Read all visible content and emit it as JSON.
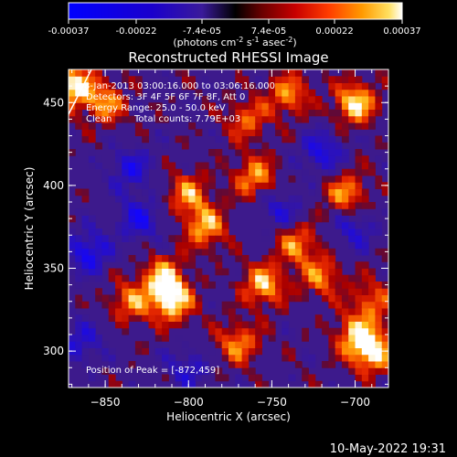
{
  "chart_data": {
    "type": "heatmap",
    "title": "Reconstructed RHESSI Image",
    "xlabel": "Heliocentric X (arcsec)",
    "ylabel": "Heliocentric Y (arcsec)",
    "xlim": [
      -872,
      -680
    ],
    "ylim": [
      278,
      470
    ],
    "xticks": [
      -850,
      -800,
      -750,
      -700
    ],
    "yticks": [
      300,
      350,
      400,
      450
    ],
    "colorbar": {
      "range": [
        -0.00037,
        0.00037
      ],
      "tick_values": [
        -0.00037,
        -0.00022,
        -7.4e-05,
        7.4e-05,
        0.00022,
        0.00037
      ],
      "tick_labels": [
        "-0.00037",
        "-0.00022",
        "-7.4e-05",
        "7.4e-05",
        "0.00022",
        "0.00037"
      ],
      "unit_prefix": "(photons cm",
      "unit_exp1": "-2",
      "unit_mid": " s",
      "unit_exp2": "-1",
      "unit_suffix": " asec",
      "unit_exp3": "-2",
      "unit_close": ")"
    },
    "annotations": {
      "time": "8-Jan-2013 03:00:16.000 to 03:06:16.000",
      "detectors": "Detectors: 3F 4F 5F 6F 7F 8F, Att 0",
      "energy": "Energy Range: 25.0 - 50.0 keV",
      "method": "Clean",
      "counts": "Total counts: 7.79E+03",
      "peak": "Position of Peak = [-872,459]"
    },
    "peak_position": [
      -872,
      459
    ],
    "approx_hotspots": [
      {
        "x": -870,
        "y": 460,
        "level": 1.0
      },
      {
        "x": -850,
        "y": 450,
        "level": 0.7
      },
      {
        "x": -700,
        "y": 450,
        "level": 0.95
      },
      {
        "x": -740,
        "y": 455,
        "level": 0.7
      },
      {
        "x": -765,
        "y": 440,
        "level": 0.6
      },
      {
        "x": -800,
        "y": 395,
        "level": 0.7
      },
      {
        "x": -760,
        "y": 405,
        "level": 0.75
      },
      {
        "x": -790,
        "y": 375,
        "level": 0.8
      },
      {
        "x": -810,
        "y": 330,
        "level": 0.95
      },
      {
        "x": -815,
        "y": 345,
        "level": 0.8
      },
      {
        "x": -835,
        "y": 330,
        "level": 0.65
      },
      {
        "x": -755,
        "y": 340,
        "level": 0.85
      },
      {
        "x": -735,
        "y": 365,
        "level": 0.7
      },
      {
        "x": -770,
        "y": 305,
        "level": 0.7
      },
      {
        "x": -720,
        "y": 345,
        "level": 0.65
      },
      {
        "x": -690,
        "y": 300,
        "level": 1.0
      },
      {
        "x": -700,
        "y": 310,
        "level": 0.7
      },
      {
        "x": -705,
        "y": 395,
        "level": 0.75
      },
      {
        "x": -690,
        "y": 330,
        "level": 0.6
      }
    ],
    "approx_coldspots": [
      {
        "x": -860,
        "y": 360,
        "level": -0.7
      },
      {
        "x": -830,
        "y": 380,
        "level": -0.6
      },
      {
        "x": -835,
        "y": 410,
        "level": -0.55
      },
      {
        "x": -720,
        "y": 420,
        "level": -0.6
      },
      {
        "x": -745,
        "y": 385,
        "level": -0.5
      },
      {
        "x": -700,
        "y": 375,
        "level": -0.5
      },
      {
        "x": -865,
        "y": 305,
        "level": -0.5
      },
      {
        "x": -800,
        "y": 290,
        "level": -0.45
      }
    ],
    "grid": false
  },
  "footer": {
    "date": "10-May-2022 19:31"
  }
}
